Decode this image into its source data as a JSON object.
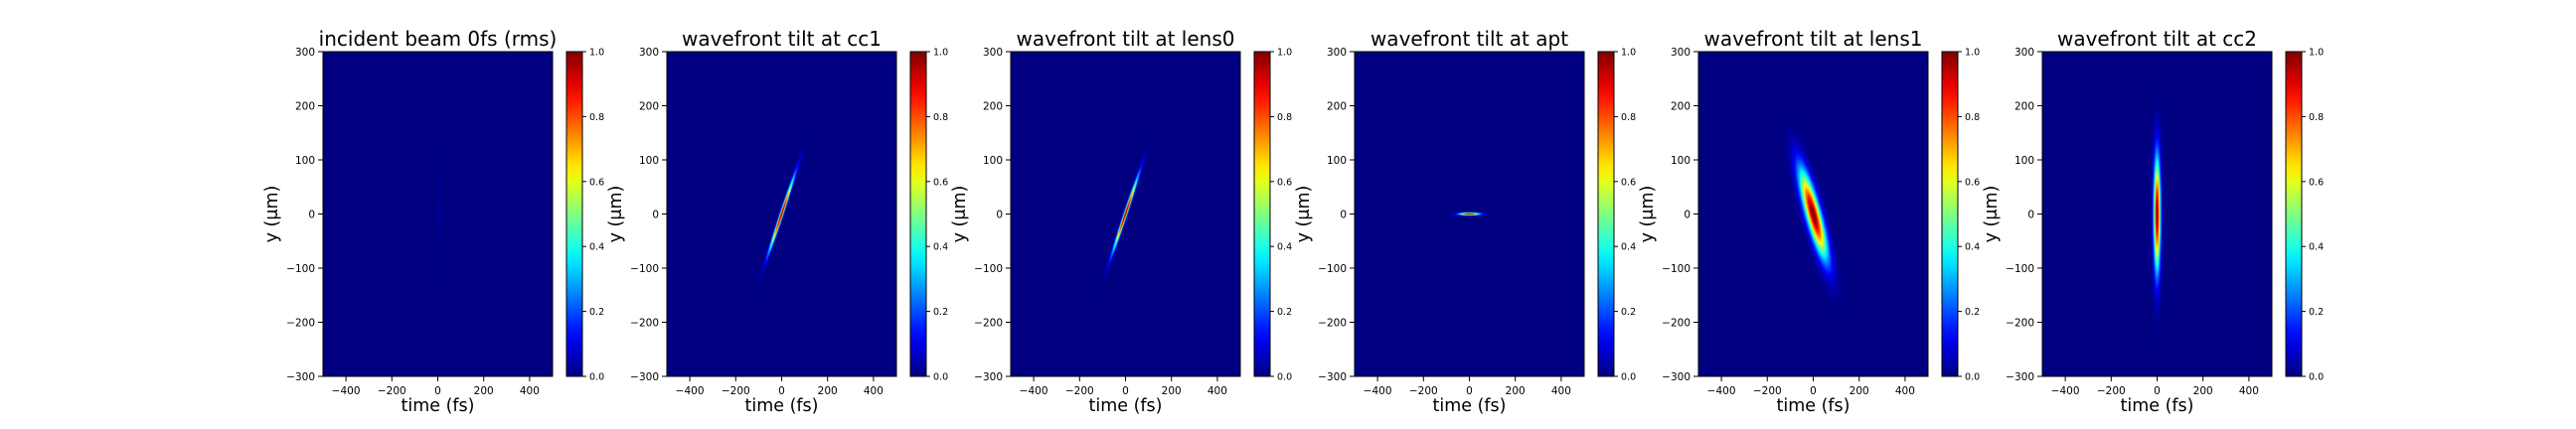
{
  "figure": {
    "colormap": "jet",
    "background": "#ffffff"
  },
  "chart_data": [
    {
      "type": "heatmap",
      "title": "incident beam 0fs (rms)",
      "xlabel": "time (fs)",
      "ylabel": "y (μm)",
      "xlim": [
        -500,
        500
      ],
      "ylim": [
        -300,
        300
      ],
      "x_ticks": [
        -400,
        -200,
        0,
        200,
        400
      ],
      "y_ticks": [
        -300,
        -200,
        -100,
        0,
        100,
        200,
        300
      ],
      "colorbar": {
        "range": [
          0,
          1
        ],
        "ticks": [
          0.0,
          0.2,
          0.4,
          0.6,
          0.8,
          1.0
        ]
      },
      "grid": false,
      "beam": {
        "center_t": 0,
        "center_y": 0,
        "sigma_t": 3,
        "sigma_y": 60,
        "tilt_fs_per_um": 0,
        "peak": 0.05
      }
    },
    {
      "type": "heatmap",
      "title": "wavefront tilt at cc1",
      "xlabel": "time (fs)",
      "ylabel": "y (μm)",
      "xlim": [
        -500,
        500
      ],
      "ylim": [
        -300,
        300
      ],
      "x_ticks": [
        -400,
        -200,
        0,
        200,
        400
      ],
      "y_ticks": [
        -300,
        -200,
        -100,
        0,
        100,
        200,
        300
      ],
      "colorbar": {
        "range": [
          0,
          1
        ],
        "ticks": [
          0.0,
          0.2,
          0.4,
          0.6,
          0.8,
          1.0
        ]
      },
      "grid": false,
      "beam": {
        "center_t": 0,
        "center_y": 0,
        "sigma_t": 5,
        "sigma_y": 45,
        "tilt_fs_per_um": 0.78,
        "peak": 1.0
      }
    },
    {
      "type": "heatmap",
      "title": "wavefront tilt at lens0",
      "xlabel": "time (fs)",
      "ylabel": "y (μm)",
      "xlim": [
        -500,
        500
      ],
      "ylim": [
        -300,
        300
      ],
      "x_ticks": [
        -400,
        -200,
        0,
        200,
        400
      ],
      "y_ticks": [
        -300,
        -200,
        -100,
        0,
        100,
        200,
        300
      ],
      "colorbar": {
        "range": [
          0,
          1
        ],
        "ticks": [
          0.0,
          0.2,
          0.4,
          0.6,
          0.8,
          1.0
        ]
      },
      "grid": false,
      "beam": {
        "center_t": 0,
        "center_y": 0,
        "sigma_t": 5,
        "sigma_y": 45,
        "tilt_fs_per_um": 0.78,
        "peak": 1.0
      }
    },
    {
      "type": "heatmap",
      "title": "wavefront tilt at apt",
      "xlabel": "time (fs)",
      "ylabel": "y (μm)",
      "xlim": [
        -500,
        500
      ],
      "ylim": [
        -300,
        300
      ],
      "x_ticks": [
        -400,
        -200,
        0,
        200,
        400
      ],
      "y_ticks": [
        -300,
        -200,
        -100,
        0,
        100,
        200,
        300
      ],
      "colorbar": {
        "range": [
          0,
          1
        ],
        "ticks": [
          0.0,
          0.2,
          0.4,
          0.6,
          0.8,
          1.0
        ]
      },
      "grid": false,
      "beam": {
        "center_t": 0,
        "center_y": 0,
        "sigma_t": 30,
        "sigma_y": 1.6,
        "tilt_fs_per_um": 0,
        "peak": 1.0
      }
    },
    {
      "type": "heatmap",
      "title": "wavefront tilt at lens1",
      "xlabel": "time (fs)",
      "ylabel": "y (μm)",
      "xlim": [
        -500,
        500
      ],
      "ylim": [
        -300,
        300
      ],
      "x_ticks": [
        -400,
        -200,
        0,
        200,
        400
      ],
      "y_ticks": [
        -300,
        -200,
        -100,
        0,
        100,
        200,
        300
      ],
      "colorbar": {
        "range": [
          0,
          1
        ],
        "ticks": [
          0.0,
          0.2,
          0.4,
          0.6,
          0.8,
          1.0
        ]
      },
      "grid": false,
      "beam": {
        "center_t": 0,
        "center_y": 0,
        "sigma_t": 22,
        "sigma_y": 55,
        "tilt_fs_per_um": -0.62,
        "peak": 1.0
      }
    },
    {
      "type": "heatmap",
      "title": "wavefront tilt at cc2",
      "xlabel": "time (fs)",
      "ylabel": "y (μm)",
      "xlim": [
        -500,
        500
      ],
      "ylim": [
        -300,
        300
      ],
      "x_ticks": [
        -400,
        -200,
        0,
        200,
        400
      ],
      "y_ticks": [
        -300,
        -200,
        -100,
        0,
        100,
        200,
        300
      ],
      "colorbar": {
        "range": [
          0,
          1
        ],
        "ticks": [
          0.0,
          0.2,
          0.4,
          0.6,
          0.8,
          1.0
        ]
      },
      "grid": false,
      "beam": {
        "center_t": 0,
        "center_y": 0,
        "sigma_t": 10,
        "sigma_y": 70,
        "tilt_fs_per_um": 0,
        "peak": 1.0
      }
    }
  ]
}
